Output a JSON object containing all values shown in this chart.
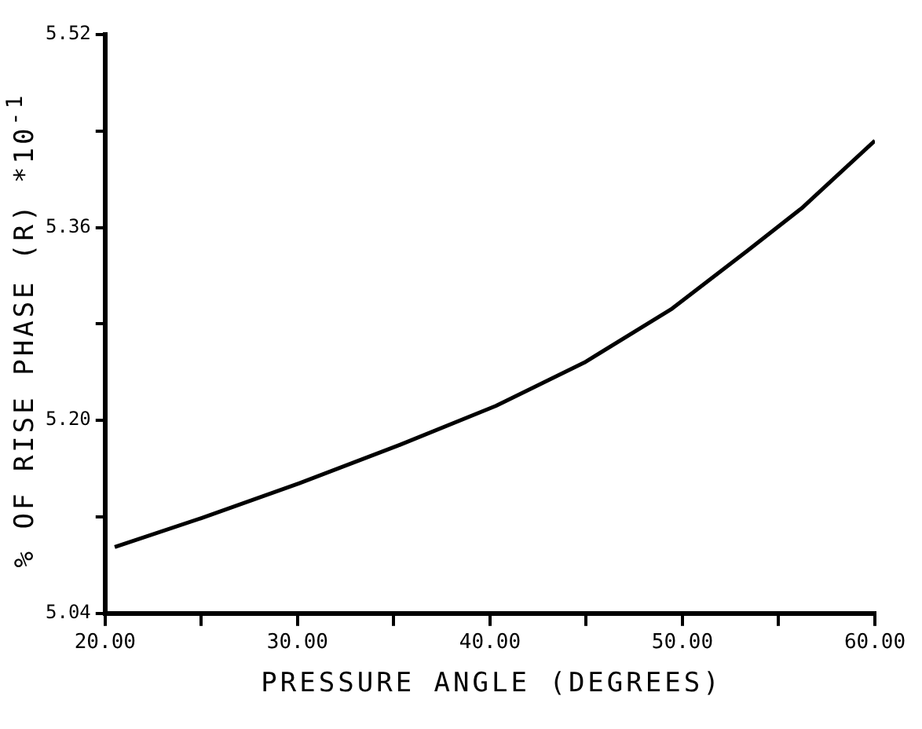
{
  "chart_data": {
    "type": "line",
    "xlabel": "PRESSURE ANGLE (DEGREES)",
    "ylabel": "% OF RISE PHASE (R)  *10$^{-1}$",
    "x": [
      20.5,
      25,
      30.1,
      35.2,
      40.3,
      44.9,
      49.4,
      53.4,
      56.2,
      60
    ],
    "series": [
      {
        "color": "#000000",
        "values": [
          5.095,
          5.119,
          5.148,
          5.179,
          5.212,
          5.248,
          5.292,
          5.341,
          5.376,
          5.432
        ]
      }
    ],
    "xlim": [
      20,
      60
    ],
    "xticks": [
      {
        "value": 20,
        "label": "20.00"
      },
      {
        "value": 25,
        "label": null
      },
      {
        "value": 30,
        "label": "30.00"
      },
      {
        "value": 35,
        "label": null
      },
      {
        "value": 40,
        "label": "40.00"
      },
      {
        "value": 45,
        "label": null
      },
      {
        "value": 50,
        "label": "50.00"
      },
      {
        "value": 55,
        "label": null
      },
      {
        "value": 60,
        "label": "60.00"
      }
    ],
    "ylim": [
      5.04,
      5.52
    ],
    "yticks": [
      5.04,
      {
        "value": 5.12,
        "label": null
      },
      {
        "value": 5.2,
        "label": "5.20"
      },
      {
        "value": 5.28,
        "label": null
      },
      5.36,
      {
        "value": 5.44,
        "label": null
      },
      5.52
    ],
    "grid": false,
    "legend": false,
    "marker": "none",
    "line_style": "solid"
  }
}
